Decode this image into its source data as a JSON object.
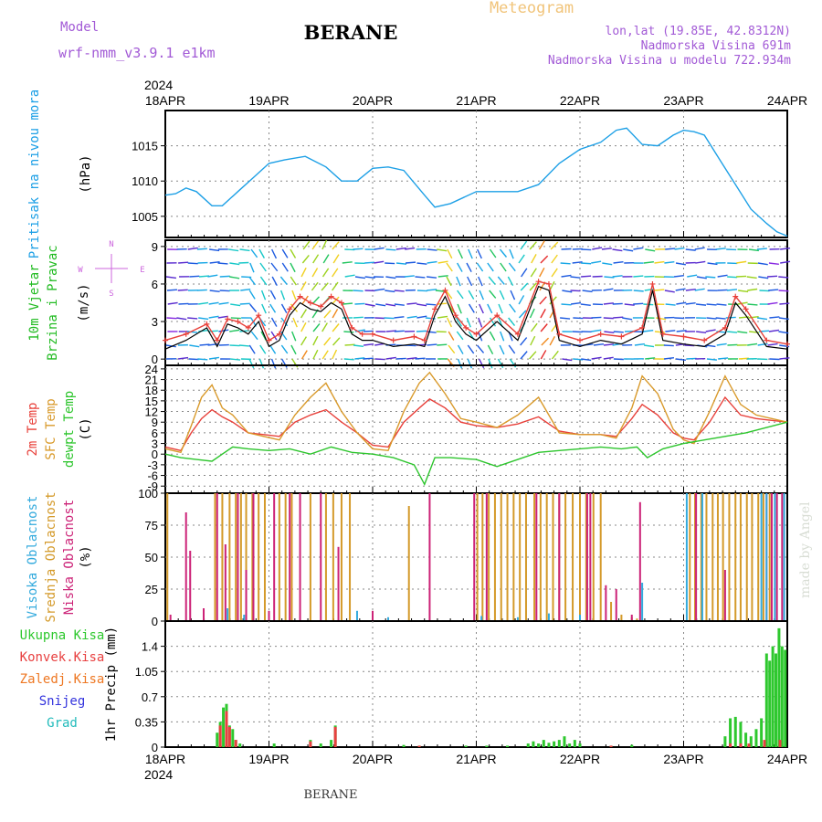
{
  "header": {
    "model_label": "Model",
    "model_name": "wrf-nmm_v3.9.1 e1km",
    "station": "BERANE",
    "meteogram": "Meteogram",
    "lonlat": "lon,lat (19.85E, 42.8312N)",
    "altitude": "Nadmorska Visina 691m",
    "altitude_model": "Nadmorska Visina u modelu 722.934m",
    "year_top": "2024",
    "year_bottom": "2024",
    "footer_station": "BERANE",
    "credit": "made by Angel"
  },
  "colors": {
    "pressure": "#1ea0e6",
    "temp2m": "#e8403a",
    "sfc": "#d99a2b",
    "dew": "#2cc52c",
    "high_cloud": "#33aadd",
    "mid_cloud": "#d49a2a",
    "low_cloud": "#cc2277",
    "precip_total": "#2ec82e",
    "precip_conv": "#e84040",
    "precip_frozen": "#ee7722",
    "snow": "#3333dd",
    "hail": "#22bbbb",
    "wind_label": "#22bb22",
    "compass": "#cc66dd"
  },
  "x_axis": {
    "labels": [
      "18APR",
      "19APR",
      "20APR",
      "21APR",
      "22APR",
      "23APR",
      "24APR"
    ]
  },
  "chart_data": [
    {
      "type": "line",
      "id": "pressure",
      "ylabel_lines": [
        "Pritisak na nivou mora"
      ],
      "unit": "(hPa)",
      "yticks": [
        1005,
        1010,
        1015
      ],
      "ylim": [
        1002,
        1020
      ],
      "x_unit": "days since 18APR",
      "series": [
        {
          "color_key": "pressure",
          "x": [
            0,
            0.1,
            0.2,
            0.3,
            0.45,
            0.55,
            0.7,
            0.85,
            1.0,
            1.15,
            1.35,
            1.55,
            1.7,
            1.85,
            2.0,
            2.15,
            2.3,
            2.5,
            2.6,
            2.75,
            3.0,
            3.2,
            3.4,
            3.6,
            3.8,
            4.0,
            4.2,
            4.35,
            4.45,
            4.6,
            4.75,
            4.9,
            5.0,
            5.1,
            5.2,
            5.35,
            5.5,
            5.65,
            5.8,
            5.9,
            6.0
          ],
          "y": [
            1008,
            1008.2,
            1009,
            1008.5,
            1006.5,
            1006.5,
            1008.5,
            1010.5,
            1012.5,
            1013,
            1013.5,
            1012,
            1010,
            1010,
            1011.8,
            1012,
            1011.5,
            1008,
            1006.3,
            1006.8,
            1008.5,
            1008.5,
            1008.5,
            1009.5,
            1012.5,
            1014.5,
            1015.5,
            1017.2,
            1017.5,
            1015.2,
            1015,
            1016.5,
            1017.2,
            1017,
            1016.5,
            1013,
            1009.5,
            1006,
            1004,
            1002.8,
            1002.2
          ]
        }
      ]
    },
    {
      "type": "line",
      "id": "wind",
      "ylabel_lines": [
        "10m Vjetar",
        "Brzina i Pravac"
      ],
      "unit": "(m/s)",
      "compass": [
        "N",
        "W",
        "E",
        "S"
      ],
      "yticks": [
        0,
        3,
        6,
        9
      ],
      "ylim": [
        -0.5,
        9.5
      ],
      "x_unit": "days since 18APR",
      "series": [
        {
          "color_key": "black",
          "x": [
            0,
            0.2,
            0.4,
            0.5,
            0.6,
            0.7,
            0.8,
            0.9,
            1.0,
            1.1,
            1.2,
            1.3,
            1.4,
            1.5,
            1.6,
            1.7,
            1.8,
            1.9,
            2.0,
            2.2,
            2.4,
            2.5,
            2.6,
            2.7,
            2.8,
            2.9,
            3.0,
            3.2,
            3.4,
            3.6,
            3.7,
            3.8,
            4.0,
            4.2,
            4.4,
            4.6,
            4.7,
            4.8,
            5.0,
            5.2,
            5.4,
            5.5,
            5.6,
            5.8,
            6.0
          ],
          "y": [
            0.8,
            1.5,
            2.5,
            1.0,
            2.8,
            2.5,
            2.0,
            3.0,
            1.0,
            1.5,
            3.5,
            4.5,
            4.0,
            3.8,
            4.5,
            4.0,
            2.0,
            1.5,
            1.5,
            1.0,
            1.2,
            1.0,
            3.5,
            5.0,
            3.0,
            2.0,
            1.5,
            3.0,
            1.5,
            5.8,
            5.5,
            1.5,
            1.0,
            1.5,
            1.2,
            2.0,
            5.5,
            1.5,
            1.2,
            1.0,
            2.0,
            4.5,
            3.5,
            1.0,
            0.8
          ]
        },
        {
          "color_key": "temp2m",
          "x": [
            0,
            0.2,
            0.4,
            0.5,
            0.6,
            0.7,
            0.8,
            0.9,
            1.0,
            1.1,
            1.2,
            1.3,
            1.4,
            1.5,
            1.6,
            1.7,
            1.8,
            1.9,
            2.0,
            2.2,
            2.4,
            2.5,
            2.6,
            2.7,
            2.8,
            2.9,
            3.0,
            3.2,
            3.4,
            3.6,
            3.7,
            3.8,
            4.0,
            4.2,
            4.4,
            4.6,
            4.7,
            4.8,
            5.0,
            5.2,
            5.4,
            5.5,
            5.6,
            5.8,
            6.0
          ],
          "y": [
            1.5,
            2.0,
            2.8,
            1.5,
            3.2,
            3.0,
            2.5,
            3.5,
            1.5,
            2.0,
            4.0,
            5.0,
            4.5,
            4.2,
            5.0,
            4.5,
            2.5,
            2.0,
            2.0,
            1.5,
            1.8,
            1.5,
            4.0,
            5.5,
            3.5,
            2.5,
            2.0,
            3.5,
            2.0,
            6.2,
            6.0,
            2.0,
            1.5,
            2.0,
            1.8,
            2.5,
            6.0,
            2.0,
            1.8,
            1.5,
            2.5,
            5.0,
            4.0,
            1.5,
            1.2
          ]
        }
      ]
    },
    {
      "type": "line",
      "id": "temperature",
      "ylabel_lines": [
        "2m Temp",
        "SFC Temp",
        "dewpt Temp"
      ],
      "unit": "(C)",
      "yticks": [
        -9,
        -6,
        -3,
        0,
        3,
        6,
        9,
        12,
        15,
        18,
        21,
        24
      ],
      "ylim": [
        -11,
        25
      ],
      "x_unit": "days since 18APR",
      "series": [
        {
          "color_key": "temp2m",
          "x": [
            0,
            0.15,
            0.25,
            0.35,
            0.45,
            0.55,
            0.65,
            0.8,
            0.95,
            1.1,
            1.25,
            1.4,
            1.55,
            1.7,
            1.85,
            2.0,
            2.15,
            2.3,
            2.45,
            2.55,
            2.7,
            2.85,
            3.0,
            3.2,
            3.4,
            3.6,
            3.8,
            4.0,
            4.2,
            4.35,
            4.5,
            4.6,
            4.75,
            4.9,
            5.0,
            5.1,
            5.25,
            5.4,
            5.55,
            5.7,
            5.85,
            6.0
          ],
          "y": [
            2,
            1,
            6,
            10,
            12.5,
            10.5,
            9,
            6,
            5.5,
            5,
            9,
            11,
            12.5,
            9,
            6,
            2.5,
            2,
            9,
            13,
            15.5,
            13,
            9,
            8,
            7.5,
            8.5,
            10.5,
            6.5,
            5.5,
            5.5,
            5,
            10,
            14,
            11,
            6,
            4.5,
            4,
            9,
            16,
            11,
            10,
            9.5,
            9
          ]
        },
        {
          "color_key": "sfc",
          "x": [
            0,
            0.15,
            0.25,
            0.35,
            0.45,
            0.55,
            0.65,
            0.8,
            0.95,
            1.1,
            1.25,
            1.4,
            1.55,
            1.7,
            1.85,
            2.0,
            2.15,
            2.3,
            2.45,
            2.55,
            2.7,
            2.85,
            3.0,
            3.2,
            3.4,
            3.6,
            3.8,
            4.0,
            4.2,
            4.35,
            4.5,
            4.6,
            4.75,
            4.9,
            5.0,
            5.1,
            5.25,
            5.4,
            5.55,
            5.7,
            5.85,
            6.0
          ],
          "y": [
            1.5,
            0.5,
            8,
            16,
            19.5,
            13,
            11,
            6,
            5,
            4,
            11,
            16,
            20,
            12,
            6,
            1.5,
            1,
            12,
            20,
            23,
            17,
            10,
            9,
            7.5,
            11,
            16,
            6,
            5.5,
            5.5,
            4.5,
            13,
            22,
            17,
            7,
            4,
            3,
            12,
            22,
            14,
            11,
            10,
            9
          ]
        },
        {
          "color_key": "dew",
          "x": [
            0,
            0.15,
            0.3,
            0.45,
            0.55,
            0.65,
            0.8,
            1.0,
            1.2,
            1.4,
            1.6,
            1.8,
            2.0,
            2.2,
            2.4,
            2.5,
            2.6,
            2.75,
            3.0,
            3.2,
            3.4,
            3.6,
            3.8,
            4.0,
            4.2,
            4.4,
            4.55,
            4.65,
            4.8,
            5.0,
            5.2,
            5.4,
            5.6,
            5.8,
            6.0
          ],
          "y": [
            0,
            -1,
            -1.5,
            -2,
            0,
            2,
            1.5,
            1,
            1.5,
            0,
            2,
            0.5,
            0,
            -1,
            -3,
            -8.5,
            -1,
            -1,
            -1.5,
            -3.5,
            -1.5,
            0.5,
            1,
            1.5,
            2,
            1.5,
            2,
            -1,
            1.5,
            3,
            4,
            5,
            6,
            7.5,
            9
          ]
        }
      ]
    },
    {
      "type": "bar",
      "id": "cloud",
      "ylabel_lines": [
        "Visoka Oblacnost",
        "Srednja Oblacnost",
        "Niska Oblacnost"
      ],
      "unit": "(%)",
      "yticks": [
        0,
        25,
        50,
        75,
        100
      ],
      "ylim": [
        0,
        100
      ],
      "x_unit": "days since 18APR",
      "series": [
        {
          "color_key": "mid_cloud",
          "name": "Srednja Oblacnost",
          "x": [
            0.02,
            0.48,
            0.55,
            0.62,
            0.68,
            0.73,
            0.78,
            0.84,
            0.9,
            0.96,
            1.1,
            1.16,
            1.22,
            1.4,
            1.55,
            1.62,
            1.7,
            1.78,
            2.35,
            3.01,
            3.06,
            3.12,
            3.18,
            3.24,
            3.3,
            3.36,
            3.42,
            3.48,
            3.56,
            3.62,
            3.68,
            3.74,
            3.8,
            3.86,
            3.93,
            4.0,
            4.06,
            4.13,
            4.2,
            4.3,
            4.4,
            4.5,
            4.55,
            5.06,
            5.11,
            5.17,
            5.22,
            5.28,
            5.33,
            5.38,
            5.44,
            5.5,
            5.55,
            5.61,
            5.66,
            5.72,
            5.77,
            5.83
          ],
          "y": [
            100,
            100,
            100,
            100,
            100,
            100,
            100,
            100,
            100,
            100,
            100,
            100,
            100,
            100,
            100,
            100,
            100,
            100,
            90,
            100,
            100,
            100,
            100,
            100,
            100,
            100,
            100,
            100,
            100,
            100,
            100,
            100,
            100,
            100,
            100,
            100,
            100,
            100,
            100,
            15,
            5,
            3,
            2,
            100,
            100,
            100,
            100,
            100,
            100,
            100,
            100,
            100,
            100,
            100,
            100,
            100,
            100,
            100
          ]
        },
        {
          "color_key": "low_cloud",
          "name": "Niska Oblacnost",
          "x": [
            0.05,
            0.2,
            0.24,
            0.37,
            0.5,
            0.58,
            0.7,
            0.78,
            0.85,
            1.0,
            1.05,
            1.2,
            1.3,
            1.5,
            1.67,
            2.0,
            2.55,
            2.98,
            3.1,
            3.58,
            3.8,
            4.07,
            4.1,
            4.25,
            4.35,
            4.5,
            4.58,
            5.12,
            5.4,
            5.8,
            5.85,
            5.9,
            5.95
          ],
          "y": [
            5,
            85,
            55,
            10,
            100,
            60,
            100,
            40,
            100,
            8,
            100,
            100,
            100,
            100,
            58,
            8,
            100,
            100,
            100,
            100,
            100,
            100,
            100,
            28,
            25,
            5,
            93,
            100,
            40,
            100,
            100,
            100,
            100
          ]
        },
        {
          "color_key": "high_cloud",
          "name": "Visoka Oblacnost",
          "x": [
            0.6,
            0.76,
            1.85,
            2.15,
            3.05,
            3.4,
            3.7,
            4.0,
            4.6,
            5.03,
            5.18,
            5.75,
            5.8,
            5.88,
            5.97
          ],
          "y": [
            10,
            5,
            8,
            3,
            4,
            3,
            6,
            5,
            30,
            100,
            100,
            100,
            100,
            100,
            100
          ]
        }
      ]
    },
    {
      "type": "bar",
      "id": "precip",
      "ylabel_lines": [
        "Ukupna Kisa",
        "Konvek.Kisa",
        "Zaledj.Kisa",
        "Snijeg",
        "Grad"
      ],
      "unit": "1hr Precip (mm)",
      "yticks": [
        0,
        0.35,
        0.7,
        1.05,
        1.4
      ],
      "ylim": [
        0,
        1.75
      ],
      "x_unit": "days since 18APR",
      "series": [
        {
          "color_key": "precip_total",
          "name": "Ukupna Kisa",
          "x": [
            0.5,
            0.53,
            0.56,
            0.59,
            0.62,
            0.65,
            0.68,
            0.72,
            1.05,
            1.4,
            1.5,
            1.6,
            1.64,
            2.3,
            2.45,
            2.9,
            3.1,
            3.3,
            3.5,
            3.55,
            3.6,
            3.65,
            3.7,
            3.75,
            3.8,
            3.85,
            3.9,
            3.95,
            4.0,
            4.3,
            4.5,
            5.4,
            5.45,
            5.5,
            5.55,
            5.6,
            5.65,
            5.7,
            5.75,
            5.8,
            5.83,
            5.86,
            5.89,
            5.92,
            5.95,
            5.98
          ],
          "y": [
            0.2,
            0.35,
            0.55,
            0.6,
            0.3,
            0.25,
            0.1,
            0.05,
            0.05,
            0.1,
            0.05,
            0.1,
            0.3,
            0.03,
            0.02,
            0.02,
            0.02,
            0.02,
            0.05,
            0.08,
            0.05,
            0.1,
            0.06,
            0.08,
            0.1,
            0.15,
            0.05,
            0.1,
            0.05,
            0.02,
            0.03,
            0.15,
            0.4,
            0.42,
            0.35,
            0.2,
            0.15,
            0.25,
            0.4,
            1.3,
            1.2,
            1.4,
            1.3,
            1.65,
            1.4,
            1.35
          ]
        },
        {
          "color_key": "precip_conv",
          "name": "Konvek.Kisa",
          "x": [
            0.53,
            0.59,
            0.62,
            0.68,
            1.4,
            1.64,
            2.45,
            4.3,
            5.45,
            5.55,
            5.63,
            5.78,
            5.93
          ],
          "y": [
            0.3,
            0.5,
            0.28,
            0.1,
            0.08,
            0.28,
            0.02,
            0.02,
            0.05,
            0.05,
            0.05,
            0.1,
            0.1
          ]
        }
      ]
    }
  ]
}
